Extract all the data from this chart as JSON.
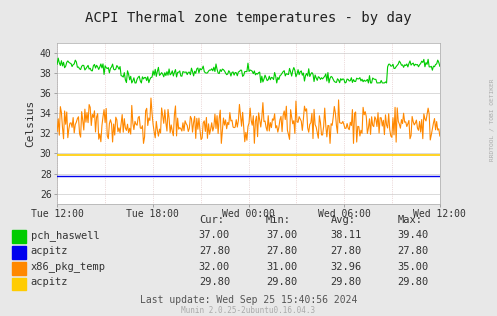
{
  "title": "ACPI Thermal zone temperatures - by day",
  "ylabel": "Celsius",
  "bg_color": "#e8e8e8",
  "plot_bg_color": "#ffffff",
  "ylim": [
    25,
    41
  ],
  "yticks": [
    26,
    28,
    30,
    32,
    34,
    36,
    38,
    40
  ],
  "xtick_labels": [
    "Tue 12:00",
    "Tue 18:00",
    "Wed 00:00",
    "Wed 06:00",
    "Wed 12:00"
  ],
  "series": [
    {
      "name": "pch_haswell",
      "color": "#00cc00",
      "flat_value": null,
      "cur": 37.0,
      "min": 37.0,
      "avg": 38.11,
      "max": 39.4
    },
    {
      "name": "acpitz",
      "color": "#0000ee",
      "flat_value": 27.8,
      "cur": 27.8,
      "min": 27.8,
      "avg": 27.8,
      "max": 27.8
    },
    {
      "name": "x86_pkg_temp",
      "color": "#ff8800",
      "flat_value": null,
      "cur": 32.0,
      "min": 31.0,
      "avg": 32.96,
      "max": 35.0
    },
    {
      "name": "acpitz",
      "color": "#ffcc00",
      "flat_value": 29.8,
      "cur": 29.8,
      "min": 29.8,
      "avg": 29.8,
      "max": 29.8
    }
  ],
  "footer_text": "Last update: Wed Sep 25 15:40:56 2024",
  "munin_version": "Munin 2.0.25-2ubuntu0.16.04.3",
  "watermark": "RRDTOOL / TOBI OETIKER",
  "title_fontsize": 10,
  "axis_fontsize": 7,
  "legend_fontsize": 7.5
}
